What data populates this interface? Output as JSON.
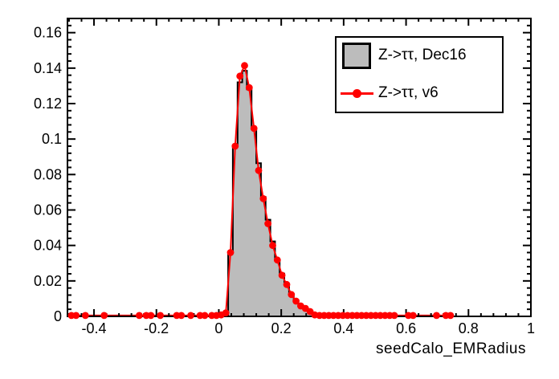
{
  "figure": {
    "background": "#ffffff",
    "frame_color": "#000000"
  },
  "axes": {
    "x_title": "seedCalo_EMRadius",
    "x_tick_labels": [
      "-0.4",
      "-0.2",
      "0",
      "0.2",
      "0.4",
      "0.6",
      "0.8",
      "1"
    ],
    "x_tick_values": [
      -0.4,
      -0.2,
      0,
      0.2,
      0.4,
      0.6,
      0.8,
      1
    ],
    "y_tick_labels": [
      "0",
      "0.02",
      "0.04",
      "0.06",
      "0.08",
      "0.1",
      "0.12",
      "0.14",
      "0.16"
    ],
    "y_tick_values": [
      0,
      0.02,
      0.04,
      0.06,
      0.08,
      0.1,
      0.12,
      0.14,
      0.16
    ]
  },
  "legend": {
    "entries": [
      {
        "label": "Z->ττ, Dec16",
        "swatch": "filled-box",
        "color": "#bcbcbc"
      },
      {
        "label": "Z->ττ, v6",
        "swatch": "line-marker",
        "color": "#ff0000"
      }
    ]
  },
  "chart_data": {
    "type": "line",
    "title": "",
    "xlabel": "seedCalo_EMRadius",
    "ylabel": "",
    "xlim": [
      -0.485,
      1.0
    ],
    "ylim": [
      0,
      0.168
    ],
    "x_minor_tick_step": 0.04,
    "y_minor_tick_step": 0.004,
    "grid": false,
    "legend_position": "top-right",
    "series": [
      {
        "name": "Z->ττ, Dec16",
        "type": "histogram",
        "fill": "#bcbcbc",
        "line_color": "#000000",
        "bin_width": 0.015,
        "first_bin_left_edge": 0.03,
        "values": [
          0.036,
          0.096,
          0.132,
          0.1385,
          0.128,
          0.106,
          0.0864,
          0.0673,
          0.0545,
          0.0423,
          0.0318,
          0.0241,
          0.0182,
          0.0127,
          0.0091,
          0.0059,
          0.0045,
          0.0027,
          0.0014
        ]
      },
      {
        "name": "Z->ττ, v6",
        "type": "line+marker",
        "color": "#ff0000",
        "marker": "filled-circle",
        "points": [
          [
            -0.4725,
            0.0005
          ],
          [
            -0.4575,
            0.0005
          ],
          [
            -0.4275,
            0.0005
          ],
          [
            -0.3675,
            0.0005
          ],
          [
            -0.255,
            0.0005
          ],
          [
            -0.2325,
            0.0005
          ],
          [
            -0.2175,
            0.0005
          ],
          [
            -0.1875,
            0.0005
          ],
          [
            -0.135,
            0.0005
          ],
          [
            -0.12,
            0.0005
          ],
          [
            -0.09,
            0.0005
          ],
          [
            -0.06,
            0.0005
          ],
          [
            -0.045,
            0.0005
          ],
          [
            -0.0225,
            0.0005
          ],
          [
            -0.0075,
            0.0005
          ],
          [
            0.0075,
            0.0008
          ],
          [
            0.0225,
            0.002
          ],
          [
            0.0375,
            0.036
          ],
          [
            0.0525,
            0.096
          ],
          [
            0.0675,
            0.1355
          ],
          [
            0.0825,
            0.1414
          ],
          [
            0.0975,
            0.129
          ],
          [
            0.1125,
            0.106
          ],
          [
            0.1275,
            0.0823
          ],
          [
            0.1425,
            0.0664
          ],
          [
            0.1575,
            0.0523
          ],
          [
            0.1725,
            0.04
          ],
          [
            0.1875,
            0.0318
          ],
          [
            0.2025,
            0.0232
          ],
          [
            0.2175,
            0.018
          ],
          [
            0.2325,
            0.0123
          ],
          [
            0.2475,
            0.0086
          ],
          [
            0.2625,
            0.0059
          ],
          [
            0.2775,
            0.0045
          ],
          [
            0.2925,
            0.0027
          ],
          [
            0.3075,
            0.0008
          ],
          [
            0.3225,
            0.0005
          ],
          [
            0.3375,
            0.0005
          ],
          [
            0.3525,
            0.0005
          ],
          [
            0.3675,
            0.0005
          ],
          [
            0.3825,
            0.0005
          ],
          [
            0.3975,
            0.0005
          ],
          [
            0.4125,
            0.0005
          ],
          [
            0.4275,
            0.0005
          ],
          [
            0.4425,
            0.0005
          ],
          [
            0.4575,
            0.0005
          ],
          [
            0.4725,
            0.0005
          ],
          [
            0.4875,
            0.0005
          ],
          [
            0.5025,
            0.0005
          ],
          [
            0.5175,
            0.0005
          ],
          [
            0.5325,
            0.0005
          ],
          [
            0.5475,
            0.0005
          ],
          [
            0.5625,
            0.0005
          ],
          [
            0.6075,
            0.0005
          ],
          [
            0.6225,
            0.0005
          ],
          [
            0.6975,
            0.0005
          ],
          [
            0.7275,
            0.0005
          ],
          [
            0.7425,
            0.0005
          ]
        ]
      }
    ]
  }
}
